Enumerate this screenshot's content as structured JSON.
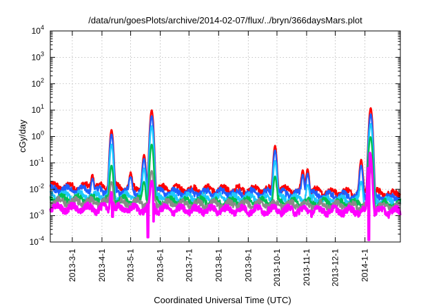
{
  "chart_data": {
    "type": "line",
    "title": "/data/run/goesPlots/archive/2014-02-07/flux/../bryn/366daysMars.plot",
    "xlabel": "Coordinated Universal Time (UTC)",
    "ylabel": "cGy/day",
    "yscale": "log",
    "ylim": [
      0.0001,
      10000
    ],
    "xlim": [
      "2013-02-06",
      "2014-02-07"
    ],
    "grid": true,
    "legend": "none",
    "y_ticks": [
      {
        "base": "10",
        "exp": "4"
      },
      {
        "base": "10",
        "exp": "3"
      },
      {
        "base": "10",
        "exp": "2"
      },
      {
        "base": "10",
        "exp": "1"
      },
      {
        "base": "10",
        "exp": "0"
      },
      {
        "base": "10",
        "exp": "-1"
      },
      {
        "base": "10",
        "exp": "-2"
      },
      {
        "base": "10",
        "exp": "-3"
      },
      {
        "base": "10",
        "exp": "-4"
      }
    ],
    "x_ticks": [
      {
        "date": "2013-03-01",
        "label": "2013-3-1"
      },
      {
        "date": "2013-04-01",
        "label": "2013-4-1"
      },
      {
        "date": "2013-05-01",
        "label": "2013-5-1"
      },
      {
        "date": "2013-06-01",
        "label": "2013-6-1"
      },
      {
        "date": "2013-07-01",
        "label": "2013-7-1"
      },
      {
        "date": "2013-08-01",
        "label": "2013-8-1"
      },
      {
        "date": "2013-09-01",
        "label": "2013-9-1"
      },
      {
        "date": "2013-10-01",
        "label": "2013-10-1"
      },
      {
        "date": "2013-11-01",
        "label": "2013-11-1"
      },
      {
        "date": "2013-12-01",
        "label": "2013-12-1"
      },
      {
        "date": "2014-01-01",
        "label": "2014-1-1"
      }
    ],
    "series": [
      {
        "color": "#ff0000",
        "baseline": [
          [
            "2013-02-06",
            0.013
          ],
          [
            "2013-04-20",
            0.012
          ],
          [
            "2013-07-01",
            0.01
          ],
          [
            "2013-09-15",
            0.01
          ],
          [
            "2013-12-01",
            0.008
          ],
          [
            "2014-02-07",
            0.007
          ]
        ],
        "events": [
          [
            "2013-03-22",
            0.038
          ],
          [
            "2013-04-11",
            1.8
          ],
          [
            "2013-05-01",
            0.038
          ],
          [
            "2013-05-15",
            0.2
          ],
          [
            "2013-05-23",
            10
          ],
          [
            "2013-09-29",
            0.45
          ],
          [
            "2013-10-28",
            0.05
          ],
          [
            "2013-11-02",
            0.06
          ],
          [
            "2013-12-28",
            0.13
          ],
          [
            "2014-01-07",
            12
          ]
        ]
      },
      {
        "color": "#1f5fff",
        "baseline": [
          [
            "2013-02-06",
            0.01
          ],
          [
            "2013-04-20",
            0.009
          ],
          [
            "2013-07-01",
            0.0075
          ],
          [
            "2013-09-15",
            0.0075
          ],
          [
            "2013-12-01",
            0.006
          ],
          [
            "2014-02-07",
            0.005
          ]
        ],
        "events": [
          [
            "2013-03-22",
            0.025
          ],
          [
            "2013-04-11",
            1.2
          ],
          [
            "2013-05-01",
            0.028
          ],
          [
            "2013-05-15",
            0.14
          ],
          [
            "2013-05-23",
            6
          ],
          [
            "2013-09-29",
            0.3
          ],
          [
            "2013-10-28",
            0.035
          ],
          [
            "2013-11-02",
            0.04
          ],
          [
            "2013-12-28",
            0.08
          ],
          [
            "2014-01-07",
            7
          ]
        ]
      },
      {
        "color": "#1ec8ff",
        "baseline": [
          [
            "2013-02-06",
            0.006
          ],
          [
            "2013-04-20",
            0.0055
          ],
          [
            "2013-07-01",
            0.0048
          ],
          [
            "2013-09-15",
            0.0048
          ],
          [
            "2013-12-01",
            0.004
          ],
          [
            "2014-02-07",
            0.0035
          ]
        ],
        "events": [
          [
            "2013-04-11",
            0.5
          ],
          [
            "2013-05-15",
            0.06
          ],
          [
            "2013-05-23",
            2.5
          ],
          [
            "2013-09-29",
            0.12
          ],
          [
            "2013-11-02",
            0.015
          ],
          [
            "2013-12-28",
            0.02
          ],
          [
            "2014-01-07",
            3
          ]
        ]
      },
      {
        "color": "#00c050",
        "baseline": [
          [
            "2013-02-06",
            0.0045
          ],
          [
            "2013-04-20",
            0.004
          ],
          [
            "2013-07-01",
            0.0035
          ],
          [
            "2013-09-15",
            0.0035
          ],
          [
            "2013-12-01",
            0.003
          ],
          [
            "2014-02-07",
            0.0028
          ]
        ],
        "events": [
          [
            "2013-04-11",
            0.08
          ],
          [
            "2013-05-15",
            0.02
          ],
          [
            "2013-05-23",
            0.5
          ],
          [
            "2013-09-29",
            0.03
          ],
          [
            "2014-01-06",
            0.22
          ],
          [
            "2014-01-07",
            0.8
          ]
        ]
      },
      {
        "color": "#8a8a8a",
        "baseline": [
          [
            "2013-02-06",
            0.0035
          ],
          [
            "2013-04-20",
            0.0032
          ],
          [
            "2013-07-01",
            0.0028
          ],
          [
            "2013-09-15",
            0.0028
          ],
          [
            "2013-12-01",
            0.0025
          ],
          [
            "2014-02-07",
            0.0023
          ]
        ],
        "events": [
          [
            "2013-04-11",
            0.02
          ],
          [
            "2013-05-23",
            0.05
          ],
          [
            "2014-01-07",
            0.06
          ]
        ]
      },
      {
        "color": "#ff00ff",
        "baseline": [
          [
            "2013-02-06",
            0.002
          ],
          [
            "2013-04-20",
            0.0019
          ],
          [
            "2013-07-01",
            0.0017
          ],
          [
            "2013-09-15",
            0.0017
          ],
          [
            "2013-12-01",
            0.0016
          ],
          [
            "2014-02-07",
            0.0015
          ]
        ],
        "events": [
          [
            "2013-04-11",
            0.008
          ],
          [
            "2013-05-23",
            0.02
          ],
          [
            "2014-01-06",
            0.2
          ],
          [
            "2014-01-07",
            0.06
          ]
        ],
        "dips": [
          [
            "2013-04-12",
            0.0009
          ],
          [
            "2013-05-19",
            0.00015
          ],
          [
            "2013-05-25",
            0.0006
          ],
          [
            "2014-01-05",
            0.00012
          ]
        ]
      }
    ]
  }
}
